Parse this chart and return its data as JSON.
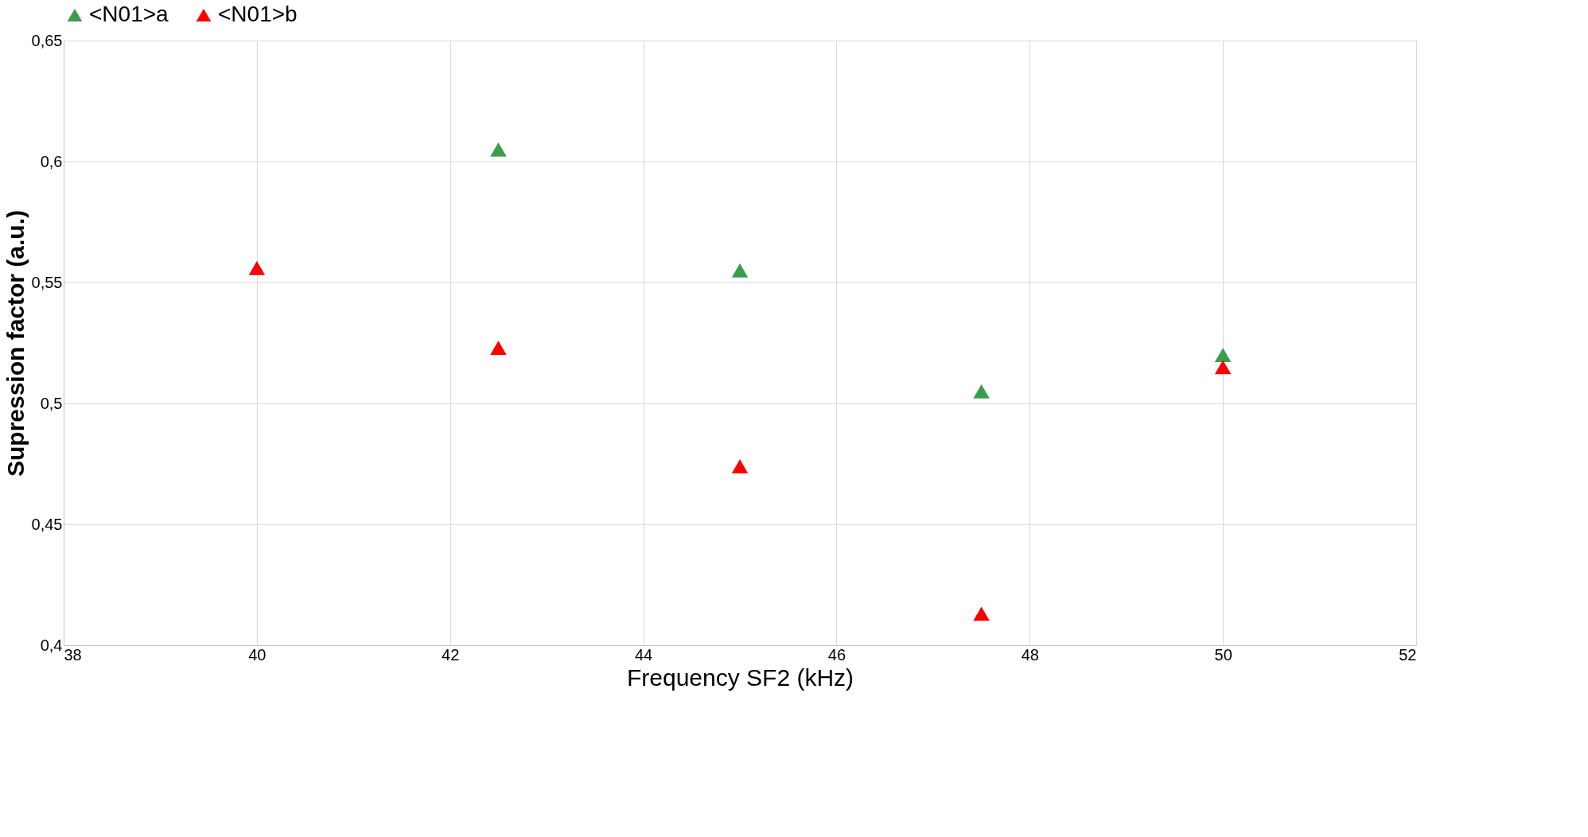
{
  "chart_data": {
    "type": "scatter",
    "xlabel": "Frequency SF2 (kHz)",
    "ylabel": "Supression factor (a.u.)",
    "series": [
      {
        "name": "<N01>a",
        "color": "#3a9d4a",
        "x": [
          42.5,
          45,
          47.5,
          50
        ],
        "values": [
          0.605,
          0.555,
          0.505,
          0.52
        ]
      },
      {
        "name": "<N01>b",
        "color": "#ff0000",
        "x": [
          40,
          42.5,
          45,
          47.5,
          50
        ],
        "values": [
          0.556,
          0.523,
          0.474,
          0.413,
          0.515
        ]
      }
    ],
    "xlim": [
      38,
      52
    ],
    "xticks": [
      38,
      40,
      42,
      44,
      46,
      48,
      50,
      52
    ],
    "ylim": [
      0.4,
      0.65
    ],
    "yticks": [
      {
        "value": 0.4,
        "label": "0,4"
      },
      {
        "value": 0.45,
        "label": "0,45"
      },
      {
        "value": 0.5,
        "label": "0,5"
      },
      {
        "value": 0.55,
        "label": "0,55"
      },
      {
        "value": 0.6,
        "label": "0,6"
      },
      {
        "value": 0.65,
        "label": "0,65"
      }
    ],
    "grid": true,
    "legend": "top",
    "marker": "triangle"
  }
}
